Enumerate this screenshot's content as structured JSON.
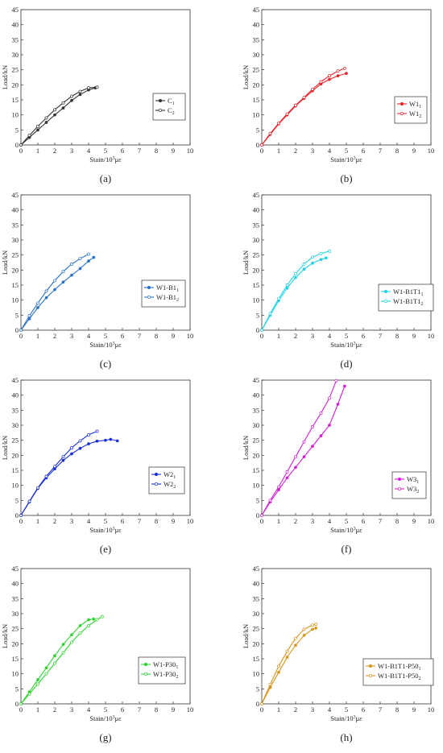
{
  "chart_data": [
    {
      "type": "line",
      "panel_label": "(a)",
      "xlabel": "Stain/10",
      "xlabel_sup": "3",
      "xlabel_unit": "με",
      "ylabel": "Load/kN",
      "xlim": [
        0,
        10
      ],
      "ylim": [
        0,
        45
      ],
      "xticks": [
        "0",
        "1",
        "2",
        "3",
        "4",
        "5",
        "6",
        "7",
        "8",
        "9",
        "10"
      ],
      "yticks": [
        "0",
        "5",
        "10",
        "15",
        "20",
        "25",
        "30",
        "35",
        "40",
        "45"
      ],
      "grid": false,
      "legend_position": "right",
      "series": [
        {
          "name": "C",
          "sub": "1",
          "color": "#333333",
          "marker": "filled",
          "x": [
            0,
            0.5,
            1.0,
            1.5,
            2.0,
            2.5,
            3.0,
            3.5,
            4.0,
            4.4
          ],
          "y": [
            0,
            2.5,
            5.0,
            7.5,
            10.0,
            12.3,
            14.8,
            16.8,
            18.3,
            19.0
          ]
        },
        {
          "name": "C",
          "sub": "2",
          "color": "#333333",
          "marker": "open",
          "x": [
            0,
            0.5,
            1.0,
            1.5,
            2.0,
            2.5,
            3.0,
            3.5,
            4.0,
            4.5
          ],
          "y": [
            0,
            3.2,
            6.2,
            9.0,
            11.7,
            14.0,
            16.2,
            17.8,
            19.0,
            19.2
          ]
        }
      ]
    },
    {
      "type": "line",
      "panel_label": "(b)",
      "xlabel": "Stain/10",
      "xlabel_sup": "3",
      "xlabel_unit": "με",
      "ylabel": "Load/kN",
      "xlim": [
        0,
        10
      ],
      "ylim": [
        0,
        45
      ],
      "xticks": [
        "0",
        "1",
        "2",
        "3",
        "4",
        "5",
        "6",
        "7",
        "8",
        "9",
        "10"
      ],
      "yticks": [
        "0",
        "5",
        "10",
        "15",
        "20",
        "25",
        "30",
        "35",
        "40",
        "45"
      ],
      "grid": false,
      "legend_position": "right",
      "series": [
        {
          "name": "W1",
          "sub": "1",
          "color": "#e8242b",
          "marker": "filled",
          "x": [
            0,
            0.5,
            1.0,
            1.5,
            2.0,
            2.5,
            3.0,
            3.5,
            4.0,
            4.5,
            5.0
          ],
          "y": [
            0,
            3.5,
            7.0,
            10.0,
            13.0,
            15.5,
            18.0,
            20.3,
            21.8,
            23.0,
            23.8
          ]
        },
        {
          "name": "W1",
          "sub": "2",
          "color": "#e8242b",
          "marker": "open",
          "x": [
            0,
            0.5,
            1.0,
            1.5,
            2.0,
            2.5,
            3.0,
            3.5,
            4.0,
            4.5,
            4.9
          ],
          "y": [
            0,
            3.8,
            7.2,
            10.3,
            13.2,
            15.8,
            18.5,
            21.0,
            23.0,
            24.6,
            25.5
          ]
        }
      ]
    },
    {
      "type": "line",
      "panel_label": "(c)",
      "xlabel": "Stain/10",
      "xlabel_sup": "3",
      "xlabel_unit": "με",
      "ylabel": "Load/kN",
      "xlim": [
        0,
        10
      ],
      "ylim": [
        0,
        45
      ],
      "xticks": [
        "0",
        "1",
        "2",
        "3",
        "4",
        "5",
        "6",
        "7",
        "8",
        "9",
        "10"
      ],
      "yticks": [
        "0",
        "5",
        "10",
        "15",
        "20",
        "25",
        "30",
        "35",
        "40",
        "45"
      ],
      "grid": false,
      "legend_position": "right",
      "series": [
        {
          "name": "W1-B1",
          "sub": "1",
          "color": "#2a72c8",
          "marker": "filled",
          "x": [
            0,
            0.5,
            1.0,
            1.5,
            2.0,
            2.5,
            3.0,
            3.5,
            4.0,
            4.3
          ],
          "y": [
            0,
            3.8,
            7.5,
            10.8,
            13.5,
            16.0,
            18.3,
            20.5,
            23.0,
            24.2
          ]
        },
        {
          "name": "W1-B1",
          "sub": "2",
          "color": "#2a72c8",
          "marker": "open",
          "x": [
            0,
            0.5,
            1.0,
            1.5,
            2.0,
            2.5,
            3.0,
            3.5,
            4.0
          ],
          "y": [
            0,
            4.8,
            9.0,
            13.0,
            16.5,
            19.5,
            22.0,
            23.8,
            25.3
          ]
        }
      ]
    },
    {
      "type": "line",
      "panel_label": "(d)",
      "xlabel": "Stain/10",
      "xlabel_sup": "3",
      "xlabel_unit": "με",
      "ylabel": "Load/kN",
      "xlim": [
        0,
        10
      ],
      "ylim": [
        0,
        45
      ],
      "xticks": [
        "0",
        "1",
        "2",
        "3",
        "4",
        "5",
        "6",
        "7",
        "8",
        "9",
        "10"
      ],
      "yticks": [
        "0",
        "5",
        "10",
        "15",
        "20",
        "25",
        "30",
        "35",
        "40",
        "45"
      ],
      "grid": false,
      "legend_position": "right",
      "series": [
        {
          "name": "W1-B1T1",
          "sub": "1",
          "color": "#22d3e6",
          "marker": "filled",
          "x": [
            0,
            0.5,
            1.0,
            1.5,
            2.0,
            2.5,
            3.0,
            3.5,
            3.8
          ],
          "y": [
            0,
            5.0,
            9.8,
            14.0,
            17.5,
            20.3,
            22.3,
            23.5,
            24.0
          ]
        },
        {
          "name": "W1-B1T1",
          "sub": "2",
          "color": "#22d3e6",
          "marker": "open",
          "x": [
            0,
            0.5,
            1.0,
            1.5,
            2.0,
            2.5,
            3.0,
            3.5,
            4.0
          ],
          "y": [
            0,
            5.5,
            10.5,
            15.0,
            18.8,
            22.0,
            24.3,
            25.5,
            26.3
          ]
        }
      ]
    },
    {
      "type": "line",
      "panel_label": "(e)",
      "xlabel": "Stain/10",
      "xlabel_sup": "3",
      "xlabel_unit": "με",
      "ylabel": "Load/kN",
      "xlim": [
        0,
        10
      ],
      "ylim": [
        0,
        45
      ],
      "xticks": [
        "0",
        "1",
        "2",
        "3",
        "4",
        "5",
        "6",
        "7",
        "8",
        "9",
        "10"
      ],
      "yticks": [
        "0",
        "5",
        "10",
        "15",
        "20",
        "25",
        "30",
        "35",
        "40",
        "45"
      ],
      "grid": false,
      "legend_position": "right",
      "series": [
        {
          "name": "W2",
          "sub": "1",
          "color": "#1a2fd8",
          "marker": "filled",
          "x": [
            0,
            0.5,
            1.0,
            1.5,
            2.0,
            2.5,
            3.0,
            3.5,
            4.0,
            4.5,
            5.0,
            5.3,
            5.7
          ],
          "y": [
            0,
            4.5,
            9.0,
            12.5,
            15.5,
            18.3,
            20.5,
            22.3,
            23.8,
            24.7,
            25.0,
            25.3,
            24.8
          ]
        },
        {
          "name": "W2",
          "sub": "2",
          "color": "#1a2fd8",
          "marker": "open",
          "x": [
            0,
            0.5,
            1.0,
            1.5,
            2.0,
            2.5,
            3.0,
            3.5,
            4.0,
            4.5
          ],
          "y": [
            0,
            4.7,
            9.2,
            13.0,
            16.3,
            19.5,
            22.5,
            24.8,
            26.8,
            28.0
          ]
        }
      ]
    },
    {
      "type": "line",
      "panel_label": "(f)",
      "xlabel": "Stain/10",
      "xlabel_sup": "3",
      "xlabel_unit": "με",
      "ylabel": "Load/kN",
      "xlim": [
        0,
        10
      ],
      "ylim": [
        0,
        45
      ],
      "xticks": [
        "0",
        "1",
        "2",
        "3",
        "4",
        "5",
        "6",
        "7",
        "8",
        "9",
        "10"
      ],
      "yticks": [
        "0",
        "5",
        "10",
        "15",
        "20",
        "25",
        "30",
        "35",
        "40",
        "45"
      ],
      "grid": false,
      "legend_position": "right",
      "series": [
        {
          "name": "W3",
          "sub": "1",
          "color": "#d61fd6",
          "marker": "filled",
          "x": [
            0,
            0.5,
            1.0,
            1.5,
            2.0,
            2.5,
            3.0,
            3.5,
            4.0,
            4.5,
            4.9
          ],
          "y": [
            0,
            4.5,
            8.5,
            12.5,
            16.0,
            19.5,
            23.0,
            26.5,
            30.0,
            37.0,
            43.0
          ]
        },
        {
          "name": "W3",
          "sub": "2",
          "color": "#d61fd6",
          "marker": "open",
          "x": [
            0,
            0.5,
            1.0,
            1.5,
            2.0,
            2.5,
            3.0,
            3.5,
            4.0,
            4.4
          ],
          "y": [
            0,
            5.0,
            9.5,
            14.5,
            19.5,
            24.5,
            29.5,
            34.0,
            39.0,
            44.8
          ]
        }
      ]
    },
    {
      "type": "line",
      "panel_label": "(g)",
      "xlabel": "Stain/10",
      "xlabel_sup": "3",
      "xlabel_unit": "με",
      "ylabel": "Load/kN",
      "xlim": [
        0,
        10
      ],
      "ylim": [
        0,
        45
      ],
      "xticks": [
        "0",
        "1",
        "2",
        "3",
        "4",
        "5",
        "6",
        "7",
        "8",
        "9",
        "10"
      ],
      "yticks": [
        "0",
        "5",
        "10",
        "15",
        "20",
        "25",
        "30",
        "35",
        "40",
        "45"
      ],
      "grid": false,
      "legend_position": "right",
      "series": [
        {
          "name": "W1-P30",
          "sub": "1",
          "color": "#2fd42f",
          "marker": "filled",
          "x": [
            0,
            0.5,
            1.0,
            1.5,
            2.0,
            2.5,
            3.0,
            3.5,
            4.0,
            4.3
          ],
          "y": [
            0,
            4.0,
            8.0,
            12.0,
            16.0,
            19.8,
            23.0,
            26.0,
            28.0,
            28.2
          ]
        },
        {
          "name": "W1-P30",
          "sub": "2",
          "color": "#2fd42f",
          "marker": "open",
          "x": [
            0,
            0.5,
            1.0,
            1.5,
            2.0,
            2.5,
            3.0,
            3.5,
            4.0,
            4.5,
            4.8
          ],
          "y": [
            0,
            3.3,
            6.6,
            10.0,
            13.5,
            17.0,
            20.5,
            23.5,
            26.0,
            28.0,
            29.0
          ]
        }
      ]
    },
    {
      "type": "line",
      "panel_label": "(h)",
      "xlabel": "Stain/10",
      "xlabel_sup": "3",
      "xlabel_unit": "με",
      "ylabel": "Load/kN",
      "xlim": [
        0,
        10
      ],
      "ylim": [
        0,
        45
      ],
      "xticks": [
        "0",
        "1",
        "2",
        "3",
        "4",
        "5",
        "6",
        "7",
        "8",
        "9",
        "10"
      ],
      "yticks": [
        "0",
        "5",
        "10",
        "15",
        "20",
        "25",
        "30",
        "35",
        "40",
        "45"
      ],
      "grid": false,
      "legend_position": "right",
      "series": [
        {
          "name": "W1-B1T1-P50",
          "sub": "1",
          "color": "#d9941a",
          "marker": "filled",
          "x": [
            0,
            0.5,
            1.0,
            1.5,
            2.0,
            2.5,
            3.0,
            3.2
          ],
          "y": [
            0,
            5.5,
            10.5,
            15.5,
            19.5,
            22.8,
            24.8,
            25.2
          ]
        },
        {
          "name": "W1-B1T1-P50",
          "sub": "2",
          "color": "#d9941a",
          "marker": "open",
          "x": [
            0,
            0.5,
            1.0,
            1.5,
            2.0,
            2.5,
            3.0,
            3.2
          ],
          "y": [
            0,
            6.5,
            12.5,
            17.5,
            21.8,
            24.8,
            26.2,
            26.5
          ]
        }
      ]
    }
  ]
}
